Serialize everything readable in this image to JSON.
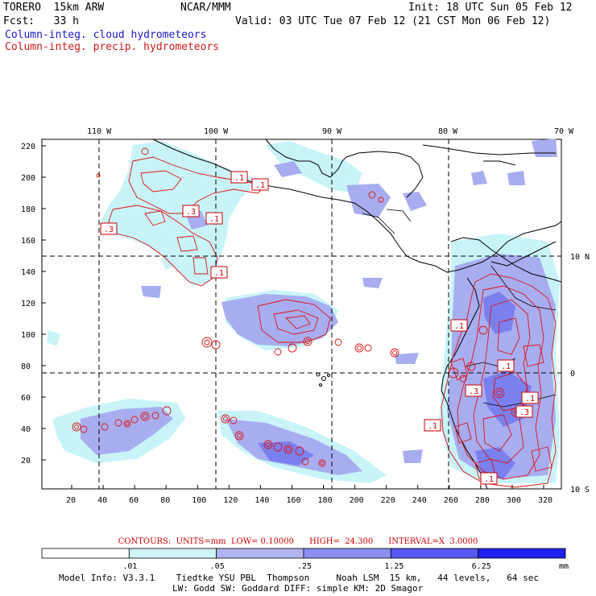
{
  "header": {
    "model": "TORERO  15km ARW",
    "org": "NCAR/MMM",
    "init": "Init: 18 UTC Sun 05 Feb 12",
    "fcst": "Fcst:   33 h",
    "valid": "Valid: 03 UTC Tue 07 Feb 12 (21 CST Mon 06 Feb 12)",
    "field1": "Column-integ. cloud hydrometeors",
    "field2": "Column-integ. precip. hydrometeors"
  },
  "map": {
    "lon_labels": [
      "110 W",
      "100 W",
      "90 W",
      "80 W",
      "70 W"
    ],
    "lat_labels": [
      "10 N",
      "0",
      "10 S"
    ],
    "y_ticks": [
      "220",
      "200",
      "180",
      "160",
      "140",
      "120",
      "100",
      "80",
      "60",
      "40",
      "20"
    ],
    "x_ticks": [
      "20",
      "40",
      "60",
      "80",
      "100",
      "120",
      "140",
      "160",
      "180",
      "200",
      "220",
      "240",
      "260",
      "280",
      "300",
      "320"
    ],
    "contour_labels": [
      ".1",
      ".1",
      ".3",
      ".1",
      ".3",
      ".1",
      ".1",
      ".1",
      ".3",
      ".1",
      ".3",
      ".1",
      ".1"
    ],
    "colors": {
      "cloud_light": "#c8f4f8",
      "cloud_mid": "#a0a8f0",
      "precip_contour": "#dd1111",
      "coast": "#000000"
    }
  },
  "footer": {
    "contours_text": "CONTOURS:  UNITS=mm  LOW= 0.10000      HIGH=  24.300      INTERVAL=X  3.0000",
    "legend_labels": [
      ".01",
      ".05",
      ".25",
      "1.25",
      "6.25"
    ],
    "legend_unit": "mm",
    "legend_colors": [
      "#ffffff",
      "#d0f4f8",
      "#b0b6f0",
      "#8a8ff0",
      "#5858f0",
      "#2020f0"
    ],
    "model_info_1": "Model Info: V3.3.1    Tiedtke YSU PBL  Thompson     Noah LSM  15 km,   44 levels,   64 sec",
    "model_info_2": "LW: Godd SW: Goddard DIFF: simple KM: 2D Smagor"
  }
}
